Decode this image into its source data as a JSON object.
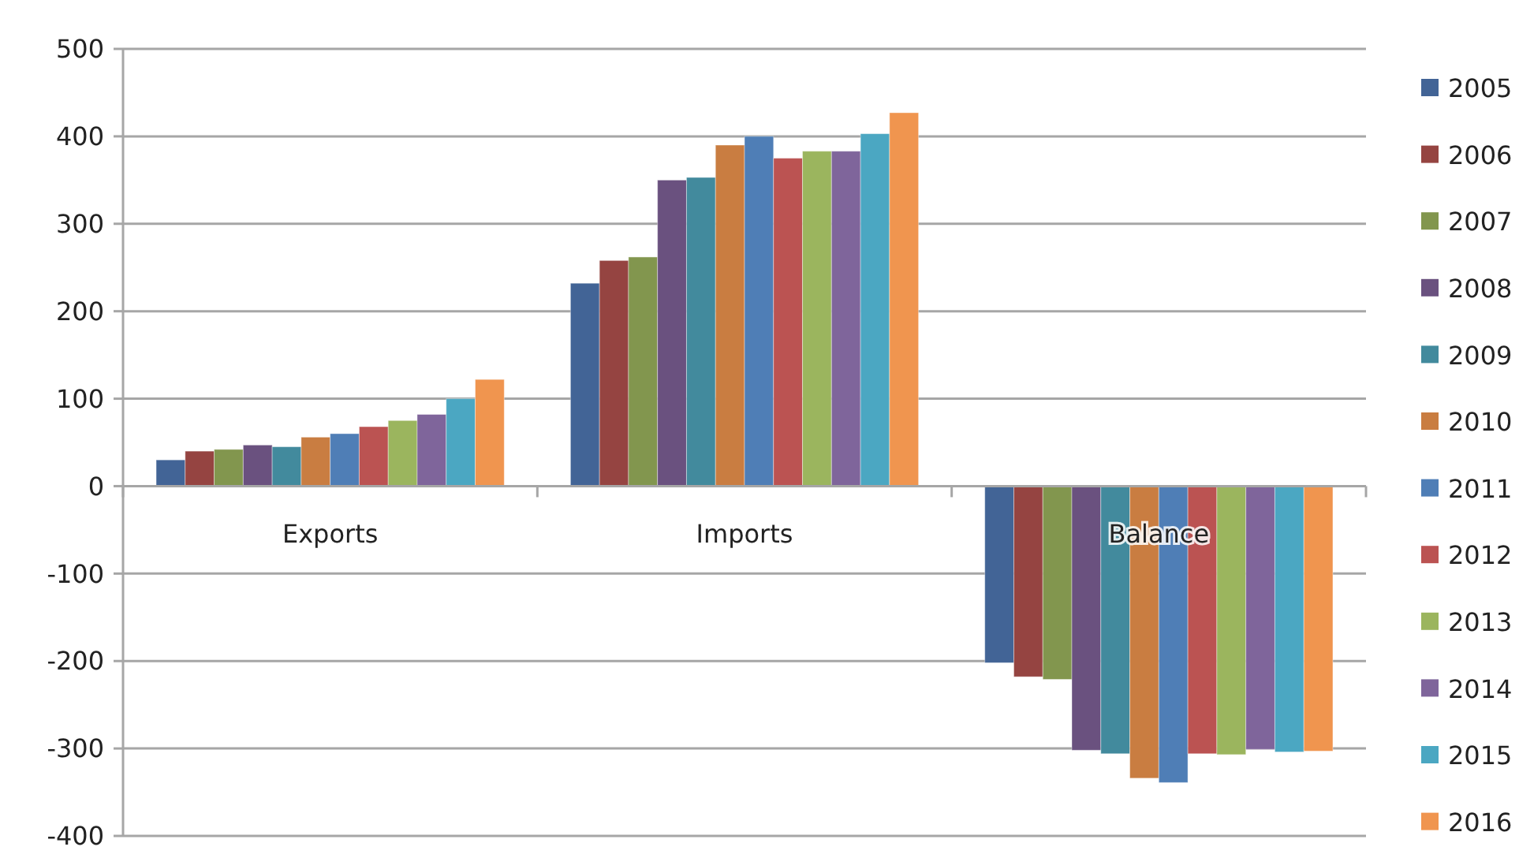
{
  "chart_data": {
    "type": "bar",
    "categories": [
      "Exports",
      "Imports",
      "Balance"
    ],
    "series": [
      {
        "name": "2005",
        "color": "#426496",
        "values": [
          30,
          232,
          -202
        ]
      },
      {
        "name": "2006",
        "color": "#954441",
        "values": [
          40,
          258,
          -218
        ]
      },
      {
        "name": "2007",
        "color": "#82964e",
        "values": [
          42,
          262,
          -221
        ]
      },
      {
        "name": "2008",
        "color": "#6a517f",
        "values": [
          47,
          350,
          -302
        ]
      },
      {
        "name": "2009",
        "color": "#428a9d",
        "values": [
          45,
          353,
          -306
        ]
      },
      {
        "name": "2010",
        "color": "#c97d41",
        "values": [
          56,
          390,
          -334
        ]
      },
      {
        "name": "2011",
        "color": "#4f7eb6",
        "values": [
          60,
          400,
          -339
        ]
      },
      {
        "name": "2012",
        "color": "#bb5352",
        "values": [
          68,
          375,
          -306
        ]
      },
      {
        "name": "2013",
        "color": "#9bb55e",
        "values": [
          75,
          383,
          -307
        ]
      },
      {
        "name": "2014",
        "color": "#7f659b",
        "values": [
          82,
          383,
          -301
        ]
      },
      {
        "name": "2015",
        "color": "#4ba7c2",
        "values": [
          100,
          403,
          -304
        ]
      },
      {
        "name": "2016",
        "color": "#f0954f",
        "values": [
          122,
          427,
          -303
        ]
      }
    ],
    "ylim": [
      -400,
      500
    ],
    "yticks": [
      -400,
      -300,
      -200,
      -100,
      0,
      100,
      200,
      300,
      400,
      500
    ],
    "grid": "y",
    "legend": "right"
  }
}
